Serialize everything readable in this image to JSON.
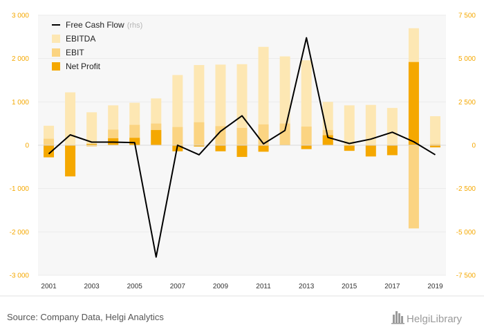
{
  "chart_data": {
    "type": "bar",
    "categories": [
      "2001",
      "2002",
      "2003",
      "2004",
      "2005",
      "2006",
      "2007",
      "2008",
      "2009",
      "2010",
      "2011",
      "2012",
      "2013",
      "2014",
      "2015",
      "2016",
      "2017",
      "2018",
      "2019"
    ],
    "x_tick_labels": [
      "2001",
      "2003",
      "2005",
      "2007",
      "2009",
      "2011",
      "2013",
      "2015",
      "2017",
      "2019"
    ],
    "series": [
      {
        "name": "EBITDA",
        "kind": "bar",
        "axis": "left",
        "color": "#fde7b3",
        "values": [
          450,
          1220,
          760,
          920,
          980,
          1080,
          1620,
          1850,
          1860,
          1870,
          2270,
          2050,
          1960,
          1000,
          920,
          930,
          860,
          2700,
          670
        ]
      },
      {
        "name": "EBIT",
        "kind": "bar",
        "axis": "left",
        "color": "#fbd482",
        "values": [
          150,
          -100,
          -30,
          360,
          470,
          500,
          420,
          530,
          440,
          400,
          480,
          500,
          430,
          350,
          -30,
          10,
          -30,
          -1920,
          30
        ]
      },
      {
        "name": "Net Profit",
        "kind": "bar",
        "axis": "left",
        "color": "#f5a800",
        "values": [
          -280,
          -720,
          30,
          160,
          170,
          350,
          -140,
          -30,
          -140,
          -270,
          -150,
          10,
          -90,
          230,
          -130,
          -260,
          -230,
          1920,
          -50
        ]
      },
      {
        "name": "Free Cash Flow",
        "suffix": "(rhs)",
        "kind": "line",
        "axis": "right",
        "color": "#000000",
        "values": [
          -500,
          600,
          180,
          180,
          150,
          -6450,
          0,
          -550,
          800,
          1700,
          80,
          850,
          6200,
          450,
          100,
          350,
          750,
          200,
          -550
        ]
      }
    ],
    "y_left": {
      "min": -3000,
      "max": 3000,
      "ticks": [
        3000,
        2000,
        1000,
        0,
        -1000,
        -2000,
        -3000
      ],
      "tick_labels": [
        "3 000",
        "2 000",
        "1 000",
        "0",
        "-1 000",
        "-2 000",
        "-3 000"
      ]
    },
    "y_right": {
      "min": -7500,
      "max": 7500,
      "ticks": [
        7500,
        5000,
        2500,
        0,
        -2500,
        -5000,
        -7500
      ],
      "tick_labels": [
        "7 500",
        "5 000",
        "2 500",
        "0",
        "-2 500",
        "-5 000",
        "-7 500"
      ]
    },
    "grid": true,
    "legend_position": "top-left"
  },
  "colors": {
    "axis_tick": "#f5a800",
    "grid": "#ebebeb",
    "plot_bg": "#f7f7f7"
  },
  "footer": {
    "source": "Source: Company Data, Helgi Analytics",
    "logo_text": "HelgiLibrary",
    "logo_icon": "city-skyline-icon"
  }
}
